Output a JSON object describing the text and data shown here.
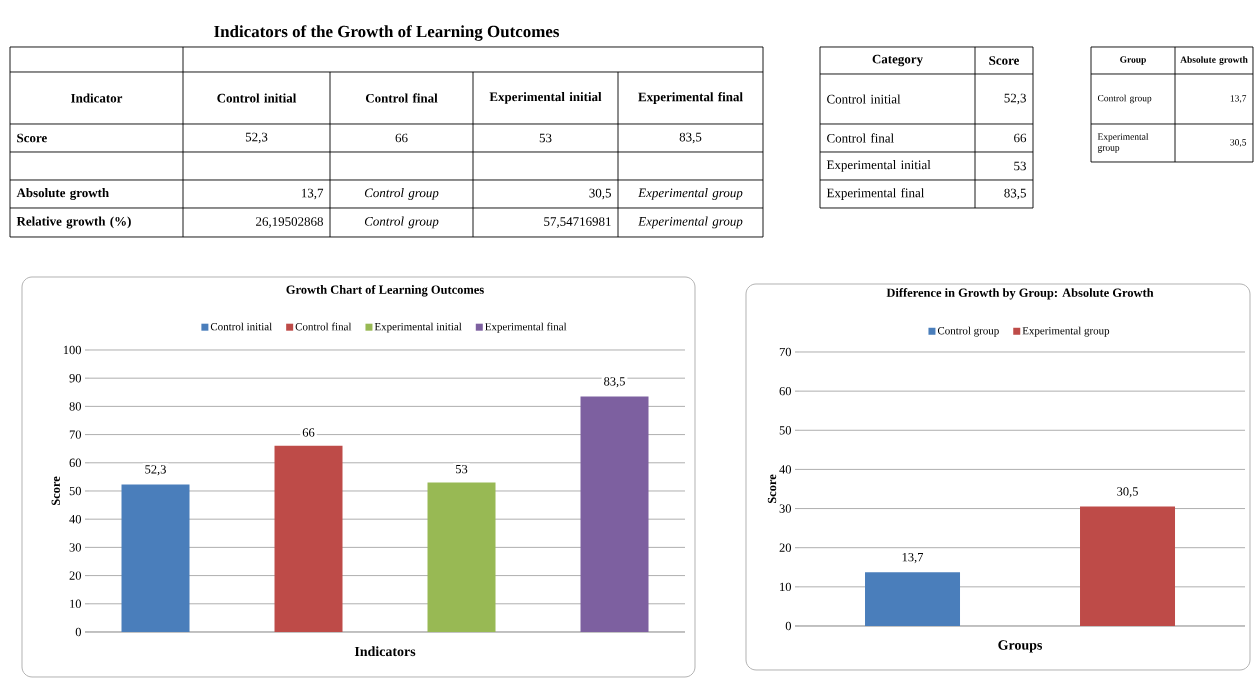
{
  "chart_data": [
    {
      "type": "other",
      "title": "Indicators of the Growth of Learning Outcomes",
      "annotations": [
        "Indicator",
        "Control initial",
        "Control final",
        "Experimental initial",
        "Experimental final",
        "Score",
        "52,3",
        "66",
        "53",
        "83,5",
        "Absolute growth",
        "13,7",
        "Control group",
        "30,5",
        "Experimental group",
        "Relative growth (%)",
        "26,19502868",
        "Control group",
        "57,54716981",
        "Experimental group"
      ]
    },
    {
      "type": "other",
      "annotations": [
        "Category",
        "Score",
        "Control initial",
        "52,3",
        "Control final",
        "66",
        "Experimental initial",
        "53",
        "Experimental final",
        "83,5"
      ]
    },
    {
      "type": "other",
      "annotations": [
        "Group",
        "Absolute growth",
        "Control group",
        "13,7",
        "Experimental group",
        "30,5"
      ]
    },
    {
      "type": "bar",
      "title": "Growth Chart of Learning Outcomes",
      "xlabel": "Indicators",
      "ylabel": "Score",
      "categories": [
        null
      ],
      "series": [
        {
          "name": "Control initial",
          "color": "#4a7ebb",
          "values": [
            52.3
          ],
          "value_labels": [
            "52,3"
          ]
        },
        {
          "name": "Control final",
          "color": "#be4b48",
          "values": [
            66
          ],
          "value_labels": [
            "66"
          ]
        },
        {
          "name": "Experimental initial",
          "color": "#98b954",
          "values": [
            53
          ],
          "value_labels": [
            "53"
          ]
        },
        {
          "name": "Experimental final",
          "color": "#7d60a0",
          "values": [
            83.5
          ],
          "value_labels": [
            "83,5"
          ]
        }
      ],
      "ylim": [
        0,
        100
      ],
      "yticks": [
        0,
        10,
        20,
        30,
        40,
        50,
        60,
        70,
        80,
        90,
        100
      ],
      "grid": "y",
      "legend": "top"
    },
    {
      "type": "bar",
      "title": "Difference in Growth by Group: Absolute Growth",
      "xlabel": "Groups",
      "ylabel": "Score",
      "categories": [
        null
      ],
      "series": [
        {
          "name": "Control group",
          "color": "#4a7ebb",
          "values": [
            13.7
          ],
          "value_labels": [
            "13,7"
          ]
        },
        {
          "name": "Experimental group",
          "color": "#be4b48",
          "values": [
            30.5
          ],
          "value_labels": [
            "30,5"
          ]
        }
      ],
      "ylim": [
        0,
        70
      ],
      "yticks": [
        0,
        10,
        20,
        30,
        40,
        50,
        60,
        70
      ],
      "grid": "y",
      "legend": "top"
    }
  ]
}
